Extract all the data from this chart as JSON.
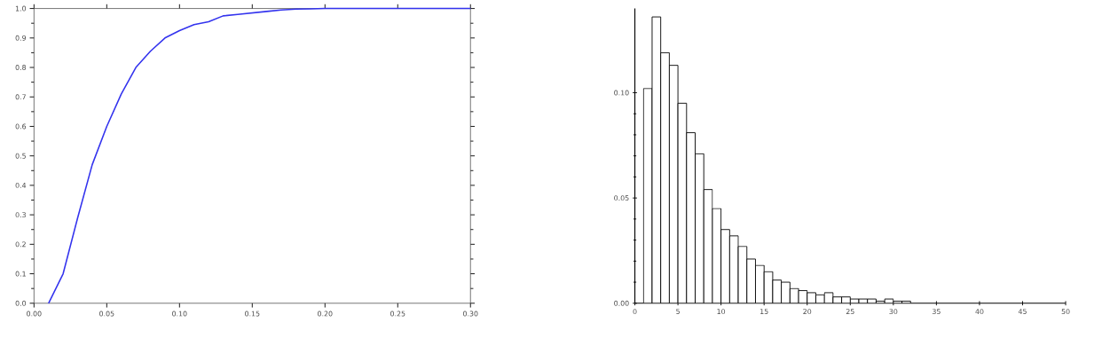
{
  "chart_data": [
    {
      "type": "line",
      "x": [
        0.01,
        0.02,
        0.03,
        0.04,
        0.05,
        0.06,
        0.07,
        0.08,
        0.09,
        0.1,
        0.11,
        0.12,
        0.13,
        0.14,
        0.15,
        0.16,
        0.17,
        0.18,
        0.19,
        0.2,
        0.22,
        0.25,
        0.3
      ],
      "series": [
        {
          "color": "#3333ee",
          "values": [
            0.0,
            0.1,
            0.29,
            0.47,
            0.6,
            0.71,
            0.8,
            0.855,
            0.9,
            0.925,
            0.945,
            0.955,
            0.975,
            0.98,
            0.985,
            0.99,
            0.995,
            0.998,
            0.999,
            1.0,
            1.0,
            1.0,
            1.0
          ]
        }
      ],
      "xlim": [
        0,
        0.3
      ],
      "ylim": [
        0,
        1.0
      ],
      "xticks": [
        {
          "value": 0,
          "label": "0.00"
        },
        0.05,
        {
          "value": 0.1,
          "label": "0.10"
        },
        0.15,
        {
          "value": 0.2,
          "label": "0.20"
        },
        0.25,
        {
          "value": 0.3,
          "label": "0.30"
        }
      ],
      "yticks": [
        {
          "value": 0,
          "label": "0.0"
        },
        0.1,
        0.2,
        0.3,
        0.4,
        0.5,
        0.6,
        0.7,
        0.8,
        0.9,
        {
          "value": 1,
          "label": "1.0"
        }
      ]
    },
    {
      "type": "histogram",
      "bins": [
        1,
        2,
        3,
        4,
        5,
        6,
        7,
        8,
        9,
        10,
        11,
        12,
        13,
        14,
        15,
        16,
        17,
        18,
        19,
        20,
        21,
        22,
        23,
        24,
        25,
        26,
        27,
        28,
        29,
        30,
        31,
        32
      ],
      "values": [
        0.102,
        0.136,
        0.119,
        0.113,
        0.095,
        0.081,
        0.071,
        0.054,
        0.045,
        0.035,
        0.032,
        0.027,
        0.021,
        0.018,
        0.015,
        0.011,
        0.01,
        0.007,
        0.006,
        0.005,
        0.004,
        0.005,
        0.003,
        0.003,
        0.002,
        0.002,
        0.002,
        0.001,
        0.002,
        0.001,
        0.001
      ],
      "color": "#ffffff",
      "xlim": [
        0,
        50
      ],
      "ylim": [
        0,
        0.14
      ],
      "xticks": [
        0,
        5,
        10,
        15,
        20,
        25,
        30,
        35,
        40,
        45,
        50
      ],
      "yticks": [
        {
          "value": 0,
          "label": "0.00"
        },
        0.05,
        {
          "value": 0.1,
          "label": "0.10"
        }
      ]
    }
  ]
}
